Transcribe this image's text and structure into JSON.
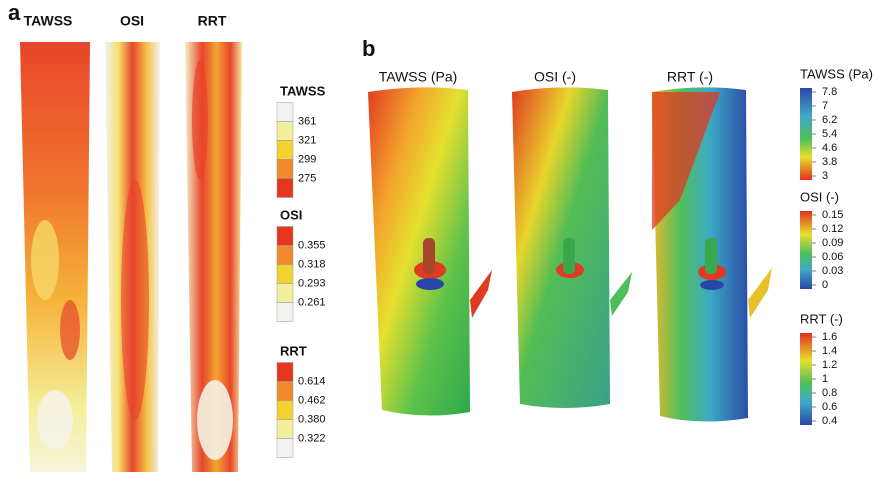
{
  "panels": [
    {
      "label": "a",
      "columns": [
        "TAWSS",
        "OSI",
        "RRT"
      ],
      "legends": [
        {
          "title": "TAWSS",
          "labels": [
            "361",
            "321",
            "299",
            "275"
          ]
        },
        {
          "title": "OSI",
          "labels": [
            "0.355",
            "0.318",
            "0.293",
            "0.261"
          ]
        },
        {
          "title": "RRT",
          "labels": [
            "0.614",
            "0.462",
            "0.380",
            "0.322"
          ]
        }
      ]
    },
    {
      "label": "b",
      "columns": [
        "TAWSS (Pa)",
        "OSI (-)",
        "RRT (-)"
      ],
      "legends": [
        {
          "title": "TAWSS (Pa)",
          "labels": [
            "7.8",
            "7",
            "6.2",
            "5.4",
            "4.6",
            "3.8",
            "3"
          ]
        },
        {
          "title": "OSI (-)",
          "labels": [
            "0.15",
            "0.12",
            "0.09",
            "0.06",
            "0.03",
            "0"
          ]
        },
        {
          "title": "RRT (-)",
          "labels": [
            "1.6",
            "1.4",
            "1.2",
            "1",
            "0.8",
            "0.6",
            "0.4"
          ]
        }
      ]
    }
  ]
}
